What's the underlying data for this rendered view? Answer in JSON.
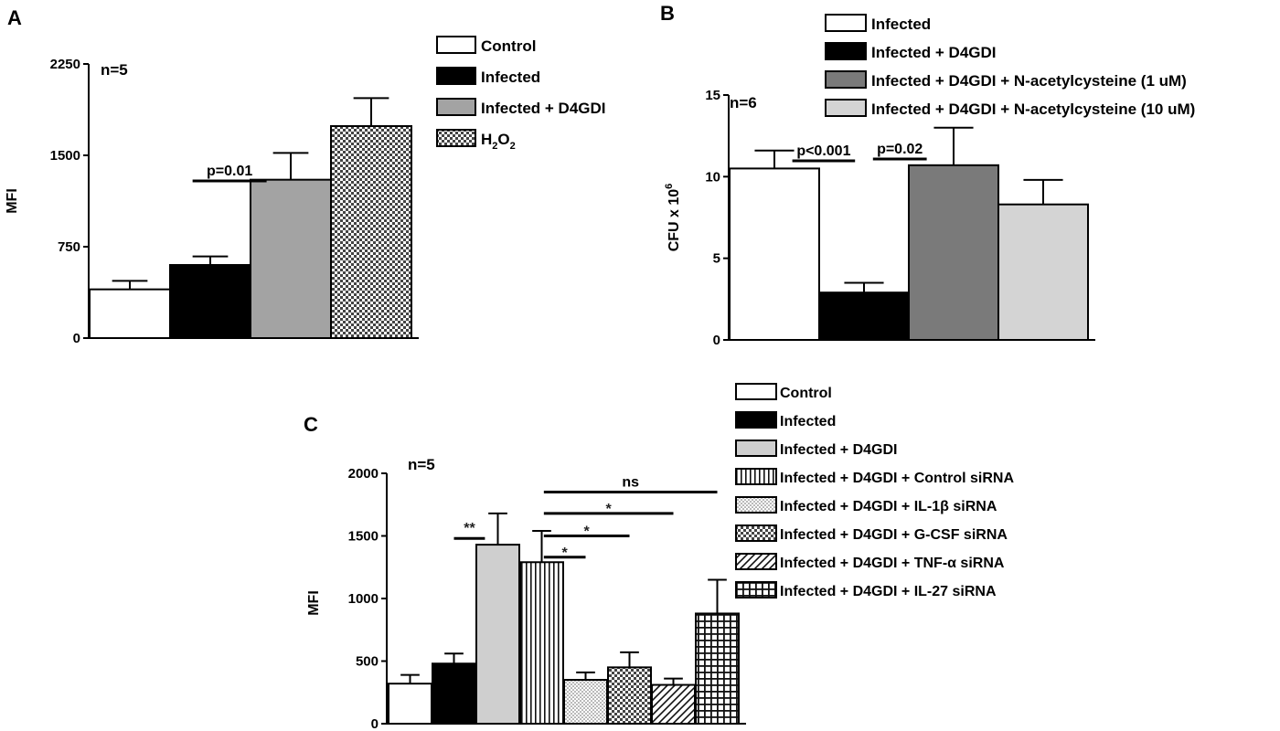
{
  "chart_data": [
    {
      "panel": "A",
      "type": "bar",
      "n_label": "n=5",
      "ylabel": "MFI",
      "ylim": [
        0,
        2250
      ],
      "yticks": [
        0,
        750,
        1500,
        2250
      ],
      "categories": [
        "Control",
        "Infected",
        "Infected + D4GDI",
        "H2O2"
      ],
      "legend": [
        "Control",
        "Infected",
        "Infected + D4GDI",
        "H2O2"
      ],
      "values": [
        400,
        600,
        1300,
        1740
      ],
      "errors": [
        70,
        70,
        220,
        230
      ],
      "fills": [
        "#ffffff",
        "#000000",
        "#a3a3a3",
        "checker"
      ],
      "annotations": [
        {
          "text": "p=0.01",
          "from": 1,
          "to": 2
        }
      ]
    },
    {
      "panel": "B",
      "type": "bar",
      "n_label": "n=6",
      "ylabel": "CFU x 10",
      "ylabel_sup": "6",
      "ylim": [
        0,
        15
      ],
      "yticks": [
        0,
        5,
        10,
        15
      ],
      "categories": [
        "Infected",
        "Infected + D4GDI",
        "Infected + D4GDI + N-acetylcysteine (1 uM)",
        "Infected + D4GDI + N-acetylcysteine (10 uM)"
      ],
      "legend": [
        "Infected",
        "Infected + D4GDI",
        "Infected + D4GDI + N-acetylcysteine (1 uM)",
        "Infected + D4GDI + N-acetylcysteine (10 uM)"
      ],
      "values": [
        10.5,
        2.9,
        10.7,
        8.3
      ],
      "errors": [
        1.1,
        0.6,
        2.3,
        1.5
      ],
      "fills": [
        "#ffffff",
        "#000000",
        "#7a7a7a",
        "#d4d4d4"
      ],
      "annotations": [
        {
          "text": "p<0.001",
          "from": 0,
          "to": 1
        },
        {
          "text": "p=0.02",
          "from": 1,
          "to": 2
        }
      ]
    },
    {
      "panel": "C",
      "type": "bar",
      "n_label": "n=5",
      "ylabel": "MFI",
      "ylim": [
        0,
        2000
      ],
      "yticks": [
        0,
        500,
        1000,
        1500,
        2000
      ],
      "categories": [
        "Control",
        "Infected",
        "Infected + D4GDI",
        "Infected + D4GDI + Control siRNA",
        "Infected + D4GDI + IL-1β siRNA",
        "Infected + D4GDI + G-CSF siRNA",
        "Infected + D4GDI + TNF-α siRNA",
        "Infected + D4GDI + IL-27 siRNA"
      ],
      "legend": [
        "Control",
        "Infected",
        "Infected + D4GDI",
        "Infected + D4GDI + Control siRNA",
        "Infected + D4GDI + IL-1β siRNA",
        "Infected + D4GDI + G-CSF siRNA",
        "Infected + D4GDI + TNF-α siRNA",
        "Infected + D4GDI + IL-27 siRNA"
      ],
      "values": [
        320,
        480,
        1430,
        1290,
        350,
        450,
        310,
        880
      ],
      "errors": [
        70,
        80,
        250,
        250,
        60,
        120,
        50,
        270
      ],
      "fills": [
        "#ffffff",
        "#000000",
        "#cfcfcf",
        "vlines",
        "dots",
        "checker",
        "diag",
        "grid"
      ],
      "annotations": [
        {
          "text": "**",
          "from": 1,
          "to": 2,
          "y": 1480
        },
        {
          "text": "*",
          "from": 3,
          "to": 4,
          "y": 1330
        },
        {
          "text": "*",
          "from": 3,
          "to": 5,
          "y": 1500
        },
        {
          "text": "*",
          "from": 3,
          "to": 6,
          "y": 1680
        },
        {
          "text": "ns",
          "from": 3,
          "to": 7,
          "y": 1850
        }
      ]
    }
  ]
}
